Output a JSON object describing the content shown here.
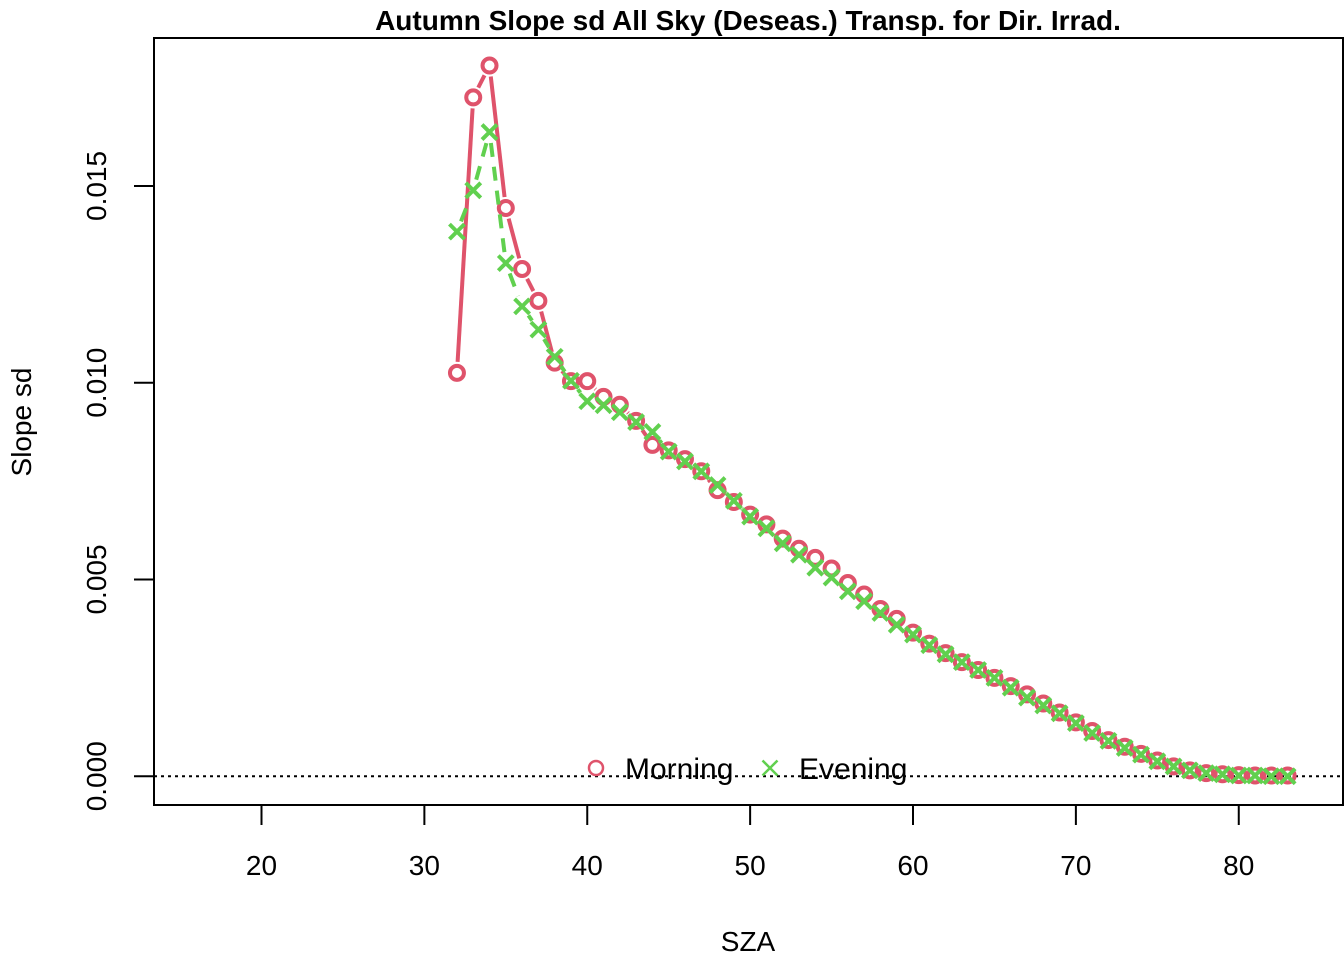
{
  "chart_data": {
    "type": "line",
    "title": "Autumn Slope sd All Sky (Deseas.) Transp. for Dir. Irrad.",
    "xlabel": "SZA",
    "ylabel": "Slope sd",
    "xlim": [
      13.4,
      86.4
    ],
    "ylim": [
      -0.00073,
      0.01876
    ],
    "x_ticks": [
      20,
      30,
      40,
      50,
      60,
      70,
      80
    ],
    "x_tick_labels": [
      "20",
      "30",
      "40",
      "50",
      "60",
      "70",
      "80"
    ],
    "y_ticks": [
      0,
      0.005,
      0.01,
      0.015
    ],
    "y_tick_labels": [
      "0.000",
      "0.005",
      "0.010",
      "0.015"
    ],
    "reference_line": {
      "y": 0,
      "style": "dotted"
    },
    "legend": {
      "placement": "bottom-center",
      "entries": [
        "Morning",
        "Evening"
      ]
    },
    "x": [
      32,
      33,
      34,
      35,
      36,
      37,
      38,
      39,
      40,
      41,
      42,
      43,
      44,
      45,
      46,
      47,
      48,
      49,
      50,
      51,
      52,
      53,
      54,
      55,
      56,
      57,
      58,
      59,
      60,
      61,
      62,
      63,
      64,
      65,
      66,
      67,
      68,
      69,
      70,
      71,
      72,
      73,
      74,
      75,
      76,
      77,
      78,
      79,
      80,
      81,
      82,
      83
    ],
    "series": [
      {
        "name": "Morning",
        "color": "#DF536B",
        "marker": "circle",
        "line_style": "solid",
        "values": [
          0.01025,
          0.01725,
          0.01806,
          0.01444,
          0.01289,
          0.01208,
          0.01051,
          0.01004,
          0.01004,
          0.00964,
          0.00944,
          0.00903,
          0.00842,
          0.00828,
          0.00806,
          0.00775,
          0.00727,
          0.00697,
          0.00665,
          0.0064,
          0.00604,
          0.00578,
          0.00555,
          0.00528,
          0.00491,
          0.00462,
          0.00425,
          0.004,
          0.00365,
          0.00337,
          0.00313,
          0.0029,
          0.0027,
          0.0025,
          0.00229,
          0.00208,
          0.00185,
          0.00162,
          0.00137,
          0.00115,
          0.00092,
          0.00075,
          0.00057,
          0.0004,
          0.00025,
          0.00015,
          8e-05,
          5e-05,
          3e-05,
          2e-05,
          2e-05,
          2e-05
        ]
      },
      {
        "name": "Evening",
        "color": "#61D04F",
        "marker": "x",
        "line_style": "dashed",
        "values": [
          0.01384,
          0.01489,
          0.01637,
          0.01304,
          0.01194,
          0.01135,
          0.01066,
          0.01005,
          0.00953,
          0.00943,
          0.00925,
          0.009,
          0.00875,
          0.00825,
          0.008,
          0.00775,
          0.0074,
          0.007,
          0.0066,
          0.0063,
          0.00592,
          0.00563,
          0.0053,
          0.00505,
          0.0047,
          0.00445,
          0.00415,
          0.00385,
          0.0036,
          0.00333,
          0.0031,
          0.0029,
          0.0027,
          0.0025,
          0.00225,
          0.002,
          0.0018,
          0.0016,
          0.00135,
          0.0011,
          0.0009,
          0.00072,
          0.00055,
          0.00038,
          0.00025,
          0.00015,
          8e-05,
          5e-05,
          2e-05,
          2e-05,
          0.0,
          0.0
        ]
      }
    ]
  }
}
